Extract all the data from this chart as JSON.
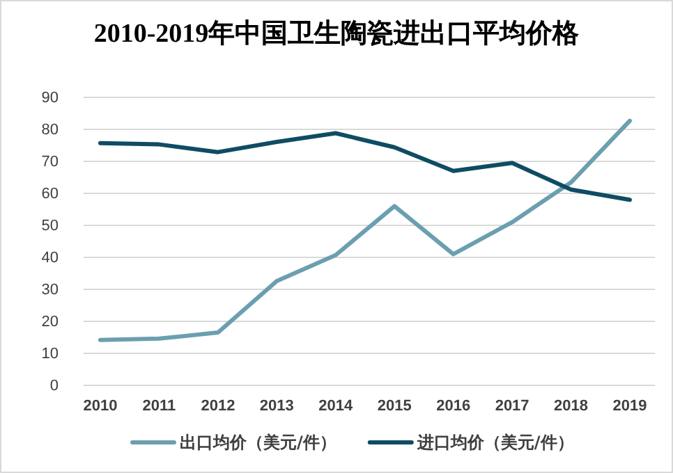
{
  "chart_data": {
    "type": "line",
    "title": "2010-2019年中国卫生陶瓷进出口平均价格",
    "categories": [
      "2010",
      "2011",
      "2012",
      "2013",
      "2014",
      "2015",
      "2016",
      "2017",
      "2018",
      "2019"
    ],
    "series": [
      {
        "name": "出口均价（美元/件）",
        "color": "#6b9fb0",
        "values": [
          14.2,
          14.6,
          16.5,
          32.6,
          40.7,
          56,
          41,
          51,
          63.4,
          82.7
        ]
      },
      {
        "name": "进口均价（美元/件）",
        "color": "#0f4c64",
        "values": [
          75.7,
          75.3,
          72.9,
          76.1,
          78.8,
          74.4,
          67,
          69.5,
          61.2,
          58
        ]
      }
    ],
    "ylim": [
      0,
      90
    ],
    "yticks": [
      0,
      10,
      20,
      30,
      40,
      50,
      60,
      70,
      80,
      90
    ],
    "grid": "y",
    "legend": "bottom",
    "marker": "none",
    "line_style": "solid"
  }
}
